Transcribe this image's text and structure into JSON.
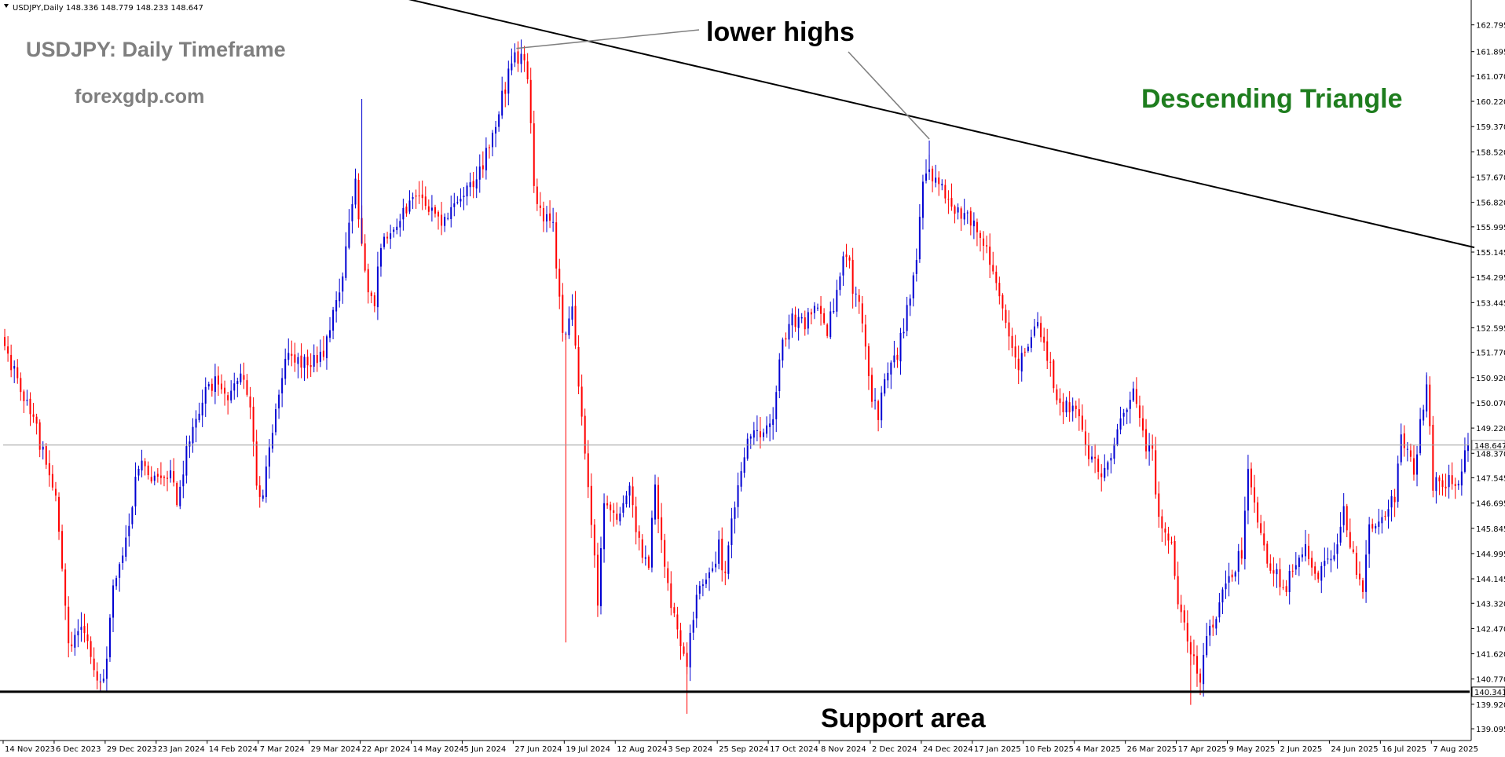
{
  "chart_info": {
    "header": "USDJPY,Daily  148.336 148.779 148.233 148.647",
    "title": "USDJPY: Daily Timeframe",
    "website": "forexgdp.com",
    "pattern_label": "Descending Triangle",
    "annotation_top": "lower highs",
    "annotation_bottom": "Support area"
  },
  "colors": {
    "bull": "#0000d2",
    "bear": "#ff0000",
    "title": "#7f7f7f",
    "pattern": "#1e7d1e",
    "axis": "#000000"
  },
  "chart_data": {
    "type": "candlestick",
    "symbol": "USDJPY",
    "timeframe": "Daily",
    "ylim": [
      138.7,
      163.5
    ],
    "current_price": 148.647,
    "support_level": 140.341,
    "y_ticks": [
      "162.795",
      "161.895",
      "161.070",
      "160.220",
      "159.370",
      "158.520",
      "157.670",
      "156.820",
      "155.995",
      "155.145",
      "154.295",
      "153.445",
      "152.595",
      "151.770",
      "150.920",
      "150.070",
      "149.220",
      "148.370",
      "147.545",
      "146.695",
      "145.845",
      "144.995",
      "144.145",
      "143.320",
      "142.470",
      "141.620",
      "140.770",
      "139.920",
      "139.095"
    ],
    "y_tick_values": [
      162.795,
      161.895,
      161.07,
      160.22,
      159.37,
      158.52,
      157.67,
      156.82,
      155.995,
      155.145,
      154.295,
      153.445,
      152.595,
      151.77,
      150.92,
      150.07,
      149.22,
      148.37,
      147.545,
      146.695,
      145.845,
      144.995,
      144.145,
      143.32,
      142.47,
      141.62,
      140.77,
      139.92,
      139.095
    ],
    "x_ticks": [
      "14 Nov 2023",
      "6 Dec 2023",
      "29 Dec 2023",
      "23 Jan 2024",
      "14 Feb 2024",
      "7 Mar 2024",
      "29 Mar 2024",
      "22 Apr 2024",
      "14 May 2024",
      "5 Jun 2024",
      "27 Jun 2024",
      "19 Jul 2024",
      "12 Aug 2024",
      "3 Sep 2024",
      "25 Sep 2024",
      "17 Oct 2024",
      "8 Nov 2024",
      "2 Dec 2024",
      "24 Dec 2024",
      "17 Jan 2025",
      "10 Feb 2025",
      "4 Mar 2025",
      "26 Mar 2025",
      "17 Apr 2025",
      "9 May 2025",
      "2 Jun 2025",
      "24 Jun 2025",
      "16 Jul 2025",
      "7 Aug 2025"
    ],
    "x_tick_index": [
      0,
      16,
      32,
      48,
      64,
      80,
      96,
      112,
      128,
      144,
      160,
      176,
      192,
      208,
      224,
      240,
      256,
      272,
      288,
      304,
      320,
      336,
      352,
      368,
      384,
      400,
      416,
      432,
      448
    ],
    "candle_count": 460,
    "trendline_start": {
      "x_index": 105,
      "y": 164.2
    },
    "trendline_end": {
      "x_index": 460,
      "y": 155.3
    },
    "lower_highs": [
      {
        "x_index": 160,
        "y": 161.95
      },
      {
        "x_index": 290,
        "y": 158.9
      }
    ],
    "price_path": [
      [
        0,
        151.9
      ],
      [
        8,
        149.8
      ],
      [
        16,
        147.0
      ],
      [
        20,
        141.8
      ],
      [
        24,
        142.5
      ],
      [
        28,
        141.1
      ],
      [
        31,
        140.6
      ],
      [
        34,
        143.8
      ],
      [
        38,
        145.3
      ],
      [
        42,
        148.1
      ],
      [
        48,
        147.4
      ],
      [
        52,
        147.9
      ],
      [
        54,
        146.6
      ],
      [
        58,
        149.0
      ],
      [
        62,
        150.2
      ],
      [
        66,
        150.8
      ],
      [
        70,
        150.4
      ],
      [
        74,
        151.2
      ],
      [
        77,
        150.1
      ],
      [
        79,
        147.3
      ],
      [
        81,
        147.0
      ],
      [
        84,
        149.2
      ],
      [
        88,
        151.5
      ],
      [
        94,
        151.4
      ],
      [
        100,
        151.7
      ],
      [
        106,
        154.5
      ],
      [
        110,
        157.5
      ],
      [
        112,
        155.2
      ],
      [
        114,
        153.9
      ],
      [
        116,
        153.3
      ],
      [
        118,
        155.5
      ],
      [
        122,
        156.0
      ],
      [
        126,
        156.6
      ],
      [
        130,
        157.0
      ],
      [
        134,
        156.6
      ],
      [
        138,
        156.1
      ],
      [
        142,
        157.1
      ],
      [
        146,
        157.4
      ],
      [
        150,
        158.1
      ],
      [
        154,
        159.6
      ],
      [
        158,
        161.1
      ],
      [
        160,
        161.6
      ],
      [
        162,
        161.7
      ],
      [
        164,
        161.2
      ],
      [
        166,
        157.6
      ],
      [
        168,
        156.4
      ],
      [
        172,
        155.9
      ],
      [
        175,
        152.3
      ],
      [
        178,
        153.1
      ],
      [
        180,
        150.7
      ],
      [
        182,
        148.2
      ],
      [
        184,
        145.9
      ],
      [
        186,
        143.5
      ],
      [
        188,
        146.8
      ],
      [
        192,
        146.3
      ],
      [
        196,
        147.3
      ],
      [
        198,
        145.9
      ],
      [
        200,
        144.9
      ],
      [
        202,
        144.6
      ],
      [
        204,
        147.3
      ],
      [
        206,
        145.2
      ],
      [
        208,
        144.0
      ],
      [
        210,
        142.8
      ],
      [
        212,
        142.1
      ],
      [
        214,
        141.4
      ],
      [
        216,
        142.9
      ],
      [
        218,
        143.8
      ],
      [
        221,
        144.1
      ],
      [
        224,
        145.2
      ],
      [
        226,
        144.1
      ],
      [
        228,
        146.2
      ],
      [
        232,
        148.5
      ],
      [
        234,
        149.0
      ],
      [
        238,
        149.2
      ],
      [
        241,
        149.7
      ],
      [
        244,
        152.1
      ],
      [
        247,
        153.0
      ],
      [
        251,
        152.6
      ],
      [
        254,
        153.4
      ],
      [
        258,
        152.5
      ],
      [
        262,
        154.3
      ],
      [
        264,
        155.2
      ],
      [
        266,
        154.0
      ],
      [
        268,
        153.2
      ],
      [
        270,
        152.2
      ],
      [
        272,
        150.2
      ],
      [
        274,
        149.6
      ],
      [
        276,
        150.9
      ],
      [
        280,
        151.7
      ],
      [
        284,
        153.6
      ],
      [
        286,
        155.0
      ],
      [
        288,
        157.5
      ],
      [
        290,
        157.9
      ],
      [
        293,
        157.6
      ],
      [
        296,
        157.0
      ],
      [
        298,
        156.4
      ],
      [
        302,
        156.5
      ],
      [
        306,
        155.7
      ],
      [
        308,
        155.2
      ],
      [
        310,
        154.5
      ],
      [
        314,
        153.0
      ],
      [
        318,
        151.2
      ],
      [
        320,
        151.8
      ],
      [
        324,
        152.7
      ],
      [
        328,
        151.3
      ],
      [
        330,
        150.0
      ],
      [
        334,
        149.9
      ],
      [
        338,
        149.3
      ],
      [
        340,
        148.4
      ],
      [
        344,
        147.6
      ],
      [
        346,
        147.8
      ],
      [
        350,
        149.4
      ],
      [
        354,
        150.5
      ],
      [
        356,
        149.8
      ],
      [
        358,
        148.6
      ],
      [
        360,
        148.4
      ],
      [
        362,
        146.0
      ],
      [
        364,
        145.7
      ],
      [
        366,
        145.2
      ],
      [
        368,
        143.2
      ],
      [
        370,
        142.6
      ],
      [
        373,
        141.5
      ],
      [
        375,
        140.9
      ],
      [
        378,
        142.5
      ],
      [
        382,
        143.6
      ],
      [
        386,
        144.6
      ],
      [
        388,
        145.1
      ],
      [
        390,
        147.7
      ],
      [
        392,
        146.5
      ],
      [
        396,
        144.7
      ],
      [
        398,
        144.3
      ],
      [
        402,
        143.9
      ],
      [
        404,
        144.6
      ],
      [
        408,
        145.1
      ],
      [
        412,
        144.4
      ],
      [
        414,
        144.5
      ],
      [
        418,
        145.4
      ],
      [
        420,
        146.4
      ],
      [
        424,
        144.4
      ],
      [
        426,
        143.9
      ],
      [
        428,
        145.9
      ],
      [
        432,
        146.3
      ],
      [
        436,
        146.9
      ],
      [
        438,
        148.8
      ],
      [
        440,
        148.4
      ],
      [
        442,
        147.9
      ],
      [
        444,
        149.3
      ],
      [
        446,
        150.9
      ],
      [
        448,
        147.3
      ],
      [
        452,
        147.4
      ],
      [
        456,
        147.5
      ],
      [
        459,
        148.6
      ]
    ]
  }
}
